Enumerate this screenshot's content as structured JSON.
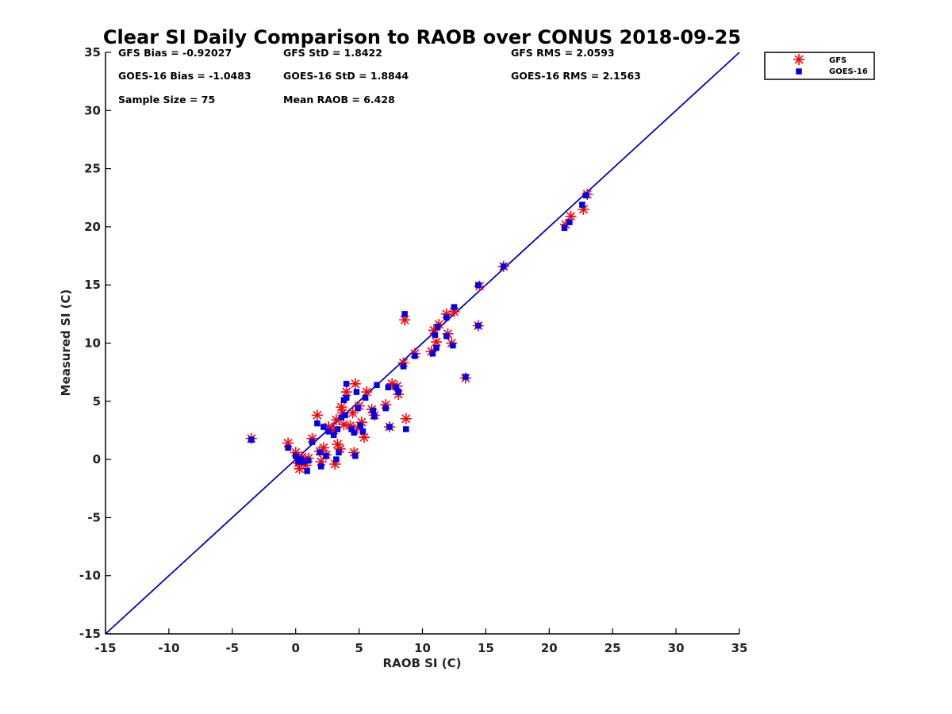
{
  "chart_data": {
    "type": "scatter",
    "title": "Clear SI Daily Comparison to RAOB over CONUS 2018-09-25",
    "xlabel": "RAOB SI (C)",
    "ylabel": "Measured SI (C)",
    "xlim": [
      -15,
      35
    ],
    "ylim": [
      -15,
      35
    ],
    "xticks": [
      "-15",
      "-10",
      "-5",
      "0",
      "5",
      "10",
      "15",
      "20",
      "25",
      "30",
      "35"
    ],
    "yticks": [
      "-15",
      "-10",
      "-5",
      "0",
      "5",
      "10",
      "15",
      "20",
      "25",
      "30",
      "35"
    ],
    "grid": false,
    "legend_position": "outside-top-right",
    "reference_line": {
      "from": [
        -15,
        -15
      ],
      "to": [
        35,
        35
      ],
      "color": "#0000cc"
    },
    "stats": [
      [
        "GFS Bias = -0.92027",
        "GFS StD = 1.8422",
        "GFS RMS = 2.0593"
      ],
      [
        "GOES-16 Bias = -1.0483",
        "GOES-16 StD = 1.8844",
        "GOES-16 RMS = 2.1563"
      ],
      [
        "Sample Size = 75",
        "Mean RAOB = 6.428",
        ""
      ]
    ],
    "series": [
      {
        "name": "GFS",
        "marker": "asterisk",
        "color": "#ff0000",
        "points": [
          [
            -3.5,
            1.8
          ],
          [
            -0.6,
            1.4
          ],
          [
            0.0,
            0.6
          ],
          [
            0.2,
            -0.3
          ],
          [
            0.3,
            -0.8
          ],
          [
            0.5,
            0.2
          ],
          [
            0.8,
            -0.5
          ],
          [
            1.0,
            0.1
          ],
          [
            1.3,
            1.8
          ],
          [
            1.7,
            3.8
          ],
          [
            1.9,
            0.7
          ],
          [
            2.0,
            -0.2
          ],
          [
            2.2,
            1.0
          ],
          [
            2.4,
            0.4
          ],
          [
            2.6,
            2.8
          ],
          [
            3.0,
            2.5
          ],
          [
            3.1,
            -0.4
          ],
          [
            3.2,
            3.4
          ],
          [
            3.3,
            1.3
          ],
          [
            3.5,
            0.9
          ],
          [
            3.6,
            4.5
          ],
          [
            3.7,
            4.0
          ],
          [
            3.8,
            3.0
          ],
          [
            4.0,
            5.8
          ],
          [
            4.3,
            2.9
          ],
          [
            4.5,
            4.0
          ],
          [
            4.6,
            0.6
          ],
          [
            4.7,
            6.5
          ],
          [
            4.9,
            2.7
          ],
          [
            5.0,
            4.6
          ],
          [
            5.2,
            3.2
          ],
          [
            5.4,
            1.9
          ],
          [
            5.6,
            5.8
          ],
          [
            6.0,
            4.3
          ],
          [
            6.2,
            3.8
          ],
          [
            7.1,
            4.7
          ],
          [
            7.4,
            2.8
          ],
          [
            7.6,
            6.5
          ],
          [
            8.0,
            6.3
          ],
          [
            8.1,
            5.6
          ],
          [
            8.5,
            8.3
          ],
          [
            8.6,
            12.0
          ],
          [
            8.7,
            3.5
          ],
          [
            9.4,
            9.1
          ],
          [
            10.7,
            9.3
          ],
          [
            10.9,
            11.1
          ],
          [
            11.1,
            10.1
          ],
          [
            11.3,
            11.6
          ],
          [
            11.9,
            12.5
          ],
          [
            12.0,
            10.8
          ],
          [
            12.3,
            10.0
          ],
          [
            12.5,
            12.7
          ],
          [
            13.4,
            7.0
          ],
          [
            14.4,
            11.5
          ],
          [
            14.5,
            14.9
          ],
          [
            16.4,
            16.6
          ],
          [
            21.3,
            20.2
          ],
          [
            21.7,
            20.9
          ],
          [
            22.7,
            21.5
          ],
          [
            23.0,
            22.8
          ]
        ]
      },
      {
        "name": "GOES-16",
        "marker": "square",
        "color": "#0000ee",
        "points": [
          [
            -3.5,
            1.7
          ],
          [
            -0.6,
            1.0
          ],
          [
            0.0,
            0.3
          ],
          [
            0.2,
            -0.2
          ],
          [
            0.4,
            0.0
          ],
          [
            0.6,
            -0.2
          ],
          [
            0.9,
            -1.0
          ],
          [
            1.0,
            -0.1
          ],
          [
            1.3,
            1.5
          ],
          [
            1.7,
            3.1
          ],
          [
            1.9,
            0.6
          ],
          [
            2.0,
            -0.6
          ],
          [
            2.2,
            2.8
          ],
          [
            2.4,
            0.3
          ],
          [
            2.6,
            2.4
          ],
          [
            3.0,
            2.1
          ],
          [
            3.2,
            0.0
          ],
          [
            3.3,
            2.6
          ],
          [
            3.4,
            0.6
          ],
          [
            3.6,
            3.6
          ],
          [
            3.8,
            5.1
          ],
          [
            3.9,
            3.8
          ],
          [
            4.0,
            5.3
          ],
          [
            4.0,
            6.5
          ],
          [
            4.4,
            2.6
          ],
          [
            4.6,
            2.3
          ],
          [
            4.7,
            0.3
          ],
          [
            4.8,
            5.8
          ],
          [
            4.9,
            4.4
          ],
          [
            5.1,
            2.9
          ],
          [
            5.3,
            2.4
          ],
          [
            5.5,
            5.3
          ],
          [
            6.1,
            4.2
          ],
          [
            6.2,
            3.7
          ],
          [
            6.4,
            6.4
          ],
          [
            7.1,
            4.4
          ],
          [
            7.3,
            6.2
          ],
          [
            7.4,
            2.8
          ],
          [
            7.9,
            6.2
          ],
          [
            8.1,
            5.8
          ],
          [
            8.5,
            8.0
          ],
          [
            8.6,
            12.5
          ],
          [
            8.7,
            2.6
          ],
          [
            9.4,
            8.9
          ],
          [
            10.8,
            9.1
          ],
          [
            11.0,
            10.7
          ],
          [
            11.1,
            9.6
          ],
          [
            11.2,
            11.4
          ],
          [
            11.9,
            12.2
          ],
          [
            11.9,
            10.6
          ],
          [
            12.4,
            9.8
          ],
          [
            12.5,
            13.1
          ],
          [
            13.4,
            7.1
          ],
          [
            14.4,
            11.5
          ],
          [
            14.4,
            15.0
          ],
          [
            16.4,
            16.6
          ],
          [
            21.2,
            19.9
          ],
          [
            21.6,
            20.4
          ],
          [
            22.6,
            21.9
          ],
          [
            22.9,
            22.7
          ]
        ]
      }
    ]
  }
}
